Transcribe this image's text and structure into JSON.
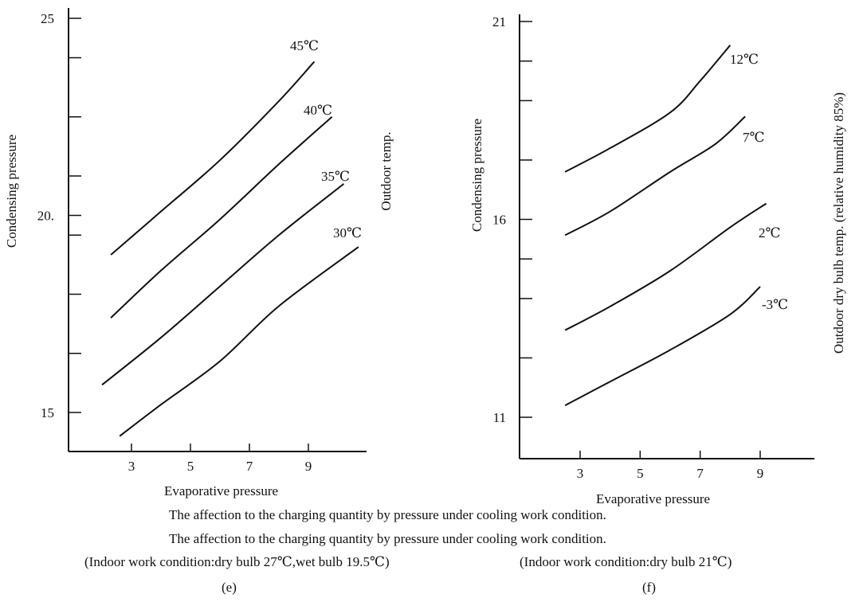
{
  "chart_data": [
    {
      "type": "line",
      "xlabel": "Evaporative pressure",
      "ylabel": "Condensing pressure",
      "series_axis_label": "Outdoor temp.",
      "xlim": [
        1,
        11
      ],
      "ylim": [
        14,
        25
      ],
      "x_ticks": [
        "3",
        "5",
        "7",
        "9"
      ],
      "y_ticks": [
        "15",
        "20.",
        "25"
      ],
      "y_minor_ticks": [
        15,
        16.5,
        18,
        19.5,
        20,
        21,
        22.5,
        24,
        25
      ],
      "subfigure_label": "(e)",
      "series": [
        {
          "name": "45℃",
          "points": [
            [
              2.3,
              19.0
            ],
            [
              4.0,
              20.1
            ],
            [
              6.0,
              21.4
            ],
            [
              8.0,
              22.9
            ],
            [
              9.2,
              23.9
            ]
          ]
        },
        {
          "name": "40℃",
          "points": [
            [
              2.3,
              17.4
            ],
            [
              4.0,
              18.6
            ],
            [
              6.0,
              19.9
            ],
            [
              8.0,
              21.3
            ],
            [
              9.8,
              22.5
            ]
          ]
        },
        {
          "name": "35℃",
          "points": [
            [
              2.0,
              15.7
            ],
            [
              4.0,
              16.9
            ],
            [
              6.0,
              18.2
            ],
            [
              8.0,
              19.5
            ],
            [
              10.2,
              20.8
            ]
          ]
        },
        {
          "name": "30℃",
          "points": [
            [
              2.6,
              14.4
            ],
            [
              4.0,
              15.2
            ],
            [
              6.0,
              16.3
            ],
            [
              8.0,
              17.7
            ],
            [
              10.7,
              19.2
            ]
          ]
        }
      ]
    },
    {
      "type": "line",
      "xlabel": "Evaporative pressure",
      "ylabel": "Condensing pressure",
      "series_axis_label": "Outdoor dry bulb temp. (relative humidity 85%)",
      "xlim": [
        1,
        11
      ],
      "ylim": [
        10.5,
        21
      ],
      "x_ticks": [
        "3",
        "5",
        "7",
        "9"
      ],
      "y_ticks": [
        "11",
        "16",
        "21"
      ],
      "y_minor_ticks": [
        11,
        12.5,
        14,
        15,
        16,
        17.5,
        19,
        20,
        21
      ],
      "subfigure_label": "(f)",
      "series": [
        {
          "name": "12℃",
          "points": [
            [
              2.5,
              17.2
            ],
            [
              4.0,
              17.8
            ],
            [
              6.0,
              18.7
            ],
            [
              7.0,
              19.5
            ],
            [
              8.0,
              20.4
            ]
          ]
        },
        {
          "name": "7℃",
          "points": [
            [
              2.5,
              15.6
            ],
            [
              4.0,
              16.2
            ],
            [
              6.0,
              17.2
            ],
            [
              7.5,
              17.9
            ],
            [
              8.5,
              18.6
            ]
          ]
        },
        {
          "name": "2℃",
          "points": [
            [
              2.5,
              13.2
            ],
            [
              4.0,
              13.8
            ],
            [
              6.0,
              14.7
            ],
            [
              8.0,
              15.8
            ],
            [
              9.2,
              16.4
            ]
          ]
        },
        {
          "name": "-3℃",
          "points": [
            [
              2.5,
              11.3
            ],
            [
              4.0,
              11.9
            ],
            [
              6.0,
              12.7
            ],
            [
              8.0,
              13.6
            ],
            [
              9.0,
              14.3
            ]
          ]
        }
      ]
    }
  ],
  "captions": {
    "line1": "The affection to the charging quantity by pressure under cooling work condition.",
    "line2": "The affection to the charging quantity by pressure under cooling work condition.",
    "condition_e": "(Indoor work condition:dry bulb 27℃,wet bulb 19.5℃)",
    "condition_f": "(Indoor work condition:dry bulb 21℃)",
    "label_e": "(e)",
    "label_f": "(f)"
  }
}
